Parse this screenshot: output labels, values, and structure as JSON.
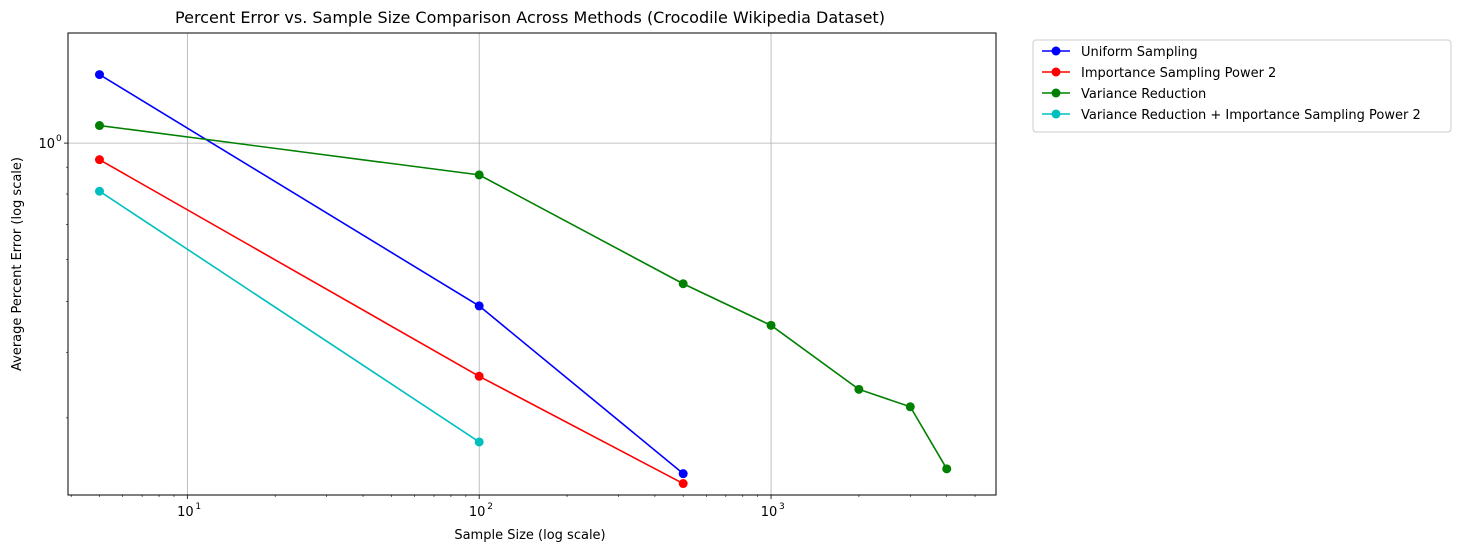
{
  "chart_data": {
    "type": "line",
    "title": "Percent Error vs. Sample Size Comparison Across Methods (Crocodile Wikipedia Dataset)",
    "xlabel": "Sample Size (log scale)",
    "ylabel": "Average Percent Error (log scale)",
    "x_scale": "log",
    "y_scale": "log",
    "xlim": [
      3.9,
      5900
    ],
    "ylim": [
      0.214,
      1.62
    ],
    "grid": true,
    "legend_position": "outside-top-right",
    "x_ticks": [
      {
        "value": 10,
        "base": "10",
        "exp": "1"
      },
      {
        "value": 100,
        "base": "10",
        "exp": "2"
      },
      {
        "value": 1000,
        "base": "10",
        "exp": "3"
      }
    ],
    "y_ticks": [
      {
        "value": 1,
        "base": "10",
        "exp": "0"
      }
    ],
    "series": [
      {
        "name": "Uniform Sampling",
        "color": "#0000ff",
        "x": [
          5,
          100,
          500
        ],
        "y": [
          1.35,
          0.49,
          0.235
        ]
      },
      {
        "name": "Importance Sampling Power 2",
        "color": "#ff0000",
        "x": [
          5,
          100,
          500
        ],
        "y": [
          0.93,
          0.36,
          0.225
        ]
      },
      {
        "name": "Variance Reduction",
        "color": "#008000",
        "x": [
          5,
          100,
          500,
          1000,
          2000,
          3000,
          4000
        ],
        "y": [
          1.08,
          0.87,
          0.54,
          0.45,
          0.34,
          0.315,
          0.24
        ]
      },
      {
        "name": "Variance Reduction + Importance Sampling Power 2",
        "color": "#00bfbf",
        "x": [
          5,
          100
        ],
        "y": [
          0.81,
          0.27
        ]
      }
    ]
  }
}
